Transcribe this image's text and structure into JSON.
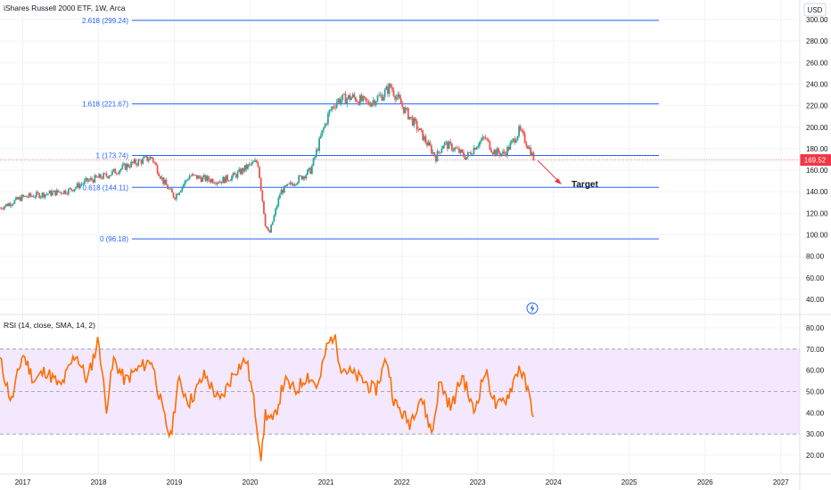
{
  "chart_data": [
    {
      "type": "candlestick",
      "title": "iShares Russell 2000 ETF, 1W, Arca",
      "currency": "USD",
      "ylim": [
        20,
        320
      ],
      "yticks": [
        40,
        60,
        80,
        100,
        120,
        140,
        160,
        180,
        200,
        220,
        240,
        260,
        280,
        300
      ],
      "ytick_labels": [
        "40.00",
        "60.00",
        "80.00",
        "100.00",
        "120.00",
        "140.00",
        "160.00",
        "180.00",
        "200.00",
        "220.00",
        "240.00",
        "260.00",
        "280.00",
        "300.00"
      ],
      "current_price": 169.52,
      "current_price_label": "169.52",
      "grid": true,
      "series": [
        {
          "name": "IWM",
          "x": [
            2016.7,
            2017.0,
            2017.3,
            2017.6,
            2017.85,
            2018.1,
            2018.4,
            2018.7,
            2018.85,
            2019.0,
            2019.2,
            2019.4,
            2019.6,
            2019.8,
            2020.0,
            2020.1,
            2020.2,
            2020.25,
            2020.4,
            2020.6,
            2020.8,
            2020.95,
            2021.05,
            2021.15,
            2021.35,
            2021.55,
            2021.75,
            2021.85,
            2022.0,
            2022.2,
            2022.45,
            2022.55,
            2022.7,
            2022.85,
            2023.0,
            2023.1,
            2023.2,
            2023.35,
            2023.45,
            2023.55,
            2023.65,
            2023.75
          ],
          "values": [
            125,
            135,
            138,
            141,
            150,
            155,
            165,
            172,
            150,
            135,
            155,
            152,
            150,
            155,
            165,
            168,
            110,
            100,
            140,
            150,
            160,
            195,
            215,
            225,
            228,
            222,
            230,
            238,
            220,
            200,
            172,
            185,
            180,
            172,
            185,
            190,
            178,
            175,
            185,
            197,
            185,
            169.52
          ]
        }
      ],
      "fibonacci": [
        {
          "level": "2.618",
          "price": 299.24,
          "label": "2.618 (299.24)"
        },
        {
          "level": "1.618",
          "price": 221.67,
          "label": "1.618 (221.67)"
        },
        {
          "level": "1",
          "price": 173.74,
          "label": "1 (173.74)"
        },
        {
          "level": "0.618",
          "price": 144.11,
          "label": "0.618 (144.11)"
        },
        {
          "level": "0",
          "price": 96.18,
          "label": "0 (96.18)"
        }
      ],
      "annotations": [
        {
          "text": "Target",
          "x": 2024.1,
          "y": 143
        }
      ],
      "xticks": [
        2017,
        2018,
        2019,
        2020,
        2021,
        2022,
        2023,
        2024,
        2025,
        2026,
        2027
      ],
      "xlim": [
        2016.7,
        2027.25
      ]
    },
    {
      "type": "line",
      "title": "RSI (14, close, SMA, 14, 2)",
      "ylim": [
        13,
        86
      ],
      "yticks": [
        20,
        30,
        40,
        50,
        60,
        70,
        80
      ],
      "ytick_labels": [
        "20.00",
        "30.00",
        "40.00",
        "50.00",
        "60.00",
        "70.00",
        "80.00"
      ],
      "bands": {
        "upper": 70,
        "middle": 50,
        "lower": 30
      },
      "series": [
        {
          "name": "RSI",
          "x": [
            2016.7,
            2016.85,
            2017.0,
            2017.15,
            2017.3,
            2017.5,
            2017.7,
            2017.85,
            2018.0,
            2018.1,
            2018.2,
            2018.35,
            2018.5,
            2018.7,
            2018.85,
            2018.95,
            2019.05,
            2019.2,
            2019.4,
            2019.6,
            2019.8,
            2019.95,
            2020.05,
            2020.15,
            2020.2,
            2020.3,
            2020.45,
            2020.6,
            2020.75,
            2020.9,
            2021.0,
            2021.1,
            2021.2,
            2021.35,
            2021.5,
            2021.65,
            2021.8,
            2021.9,
            2022.0,
            2022.1,
            2022.25,
            2022.4,
            2022.5,
            2022.65,
            2022.8,
            2022.95,
            2023.1,
            2023.25,
            2023.4,
            2023.55,
            2023.62,
            2023.7,
            2023.75
          ],
          "values": [
            65,
            45,
            68,
            55,
            60,
            52,
            68,
            55,
            75,
            42,
            65,
            55,
            60,
            65,
            40,
            28,
            55,
            45,
            58,
            45,
            60,
            65,
            45,
            18,
            40,
            35,
            55,
            50,
            58,
            52,
            70,
            77,
            62,
            58,
            55,
            50,
            66,
            45,
            40,
            35,
            48,
            30,
            55,
            42,
            58,
            40,
            60,
            42,
            48,
            62,
            55,
            45,
            38
          ]
        }
      ],
      "xticks": [
        2017,
        2018,
        2019,
        2020,
        2021,
        2022,
        2023,
        2024,
        2025,
        2026,
        2027
      ],
      "xtick_labels": [
        "2017",
        "2018",
        "2019",
        "2020",
        "2021",
        "2022",
        "2023",
        "2024",
        "2025",
        "2026",
        "2027"
      ],
      "xlim": [
        2016.7,
        2027.25
      ]
    }
  ],
  "colors": {
    "up": "#26a69a",
    "down": "#ef5350",
    "fib": "#2962ff",
    "rsi": "#ff6d00",
    "rsi_band": "#f3e8fd",
    "price_tag": "#f23645",
    "arrow": "#f23645",
    "grid": "#f0f3fa"
  },
  "icons": {
    "alert": "lightning-icon"
  }
}
